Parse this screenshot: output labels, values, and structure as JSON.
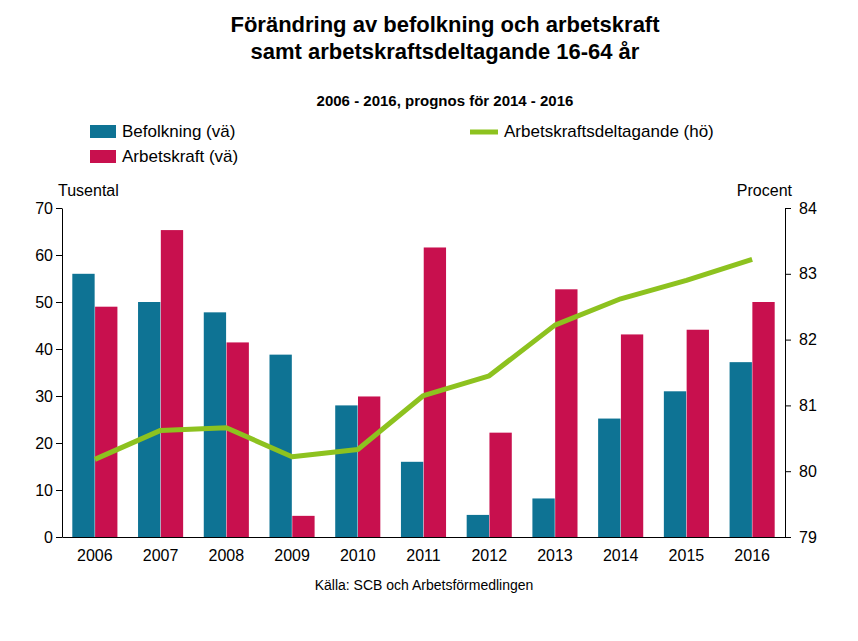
{
  "chart_data": {
    "type": "bar",
    "title": [
      "Förändring av befolkning och arbetskraft",
      "samt arbetskraftsdeltagande 16-64 år"
    ],
    "subtitle": "2006 - 2016, prognos för 2014 - 2016",
    "y_label": "Tusental",
    "y2_label": "Procent",
    "source": "Källa: SCB och Arbetsförmedlingen",
    "categories": [
      "2006",
      "2007",
      "2008",
      "2009",
      "2010",
      "2011",
      "2012",
      "2013",
      "2014",
      "2015",
      "2016"
    ],
    "series": [
      {
        "name": "Befolkning (vä)",
        "type": "bar",
        "color": "#0e7394",
        "values": [
          56,
          50,
          47.8,
          38.8,
          28,
          16,
          4.7,
          8.2,
          25.2,
          31,
          37.2
        ]
      },
      {
        "name": "Arbetskraft (vä)",
        "type": "bar",
        "color": "#c8104e",
        "values": [
          49,
          65.3,
          41.4,
          4.5,
          29.9,
          61.6,
          22.2,
          52.7,
          43.1,
          44.1,
          50
        ]
      },
      {
        "name": "Arbetskraftsdeltagande (hö)",
        "type": "line",
        "axis": "y2",
        "color": "#8dc21f",
        "values": [
          80.18,
          80.62,
          80.66,
          80.22,
          80.33,
          81.15,
          81.45,
          82.22,
          82.62,
          82.9,
          83.22
        ]
      }
    ],
    "ylim": [
      0,
      70
    ],
    "yticks": [
      0,
      10,
      20,
      30,
      40,
      50,
      60,
      70
    ],
    "y2lim": [
      79,
      84
    ],
    "y2ticks": [
      79,
      80,
      81,
      82,
      83,
      84
    ],
    "grid": false
  }
}
